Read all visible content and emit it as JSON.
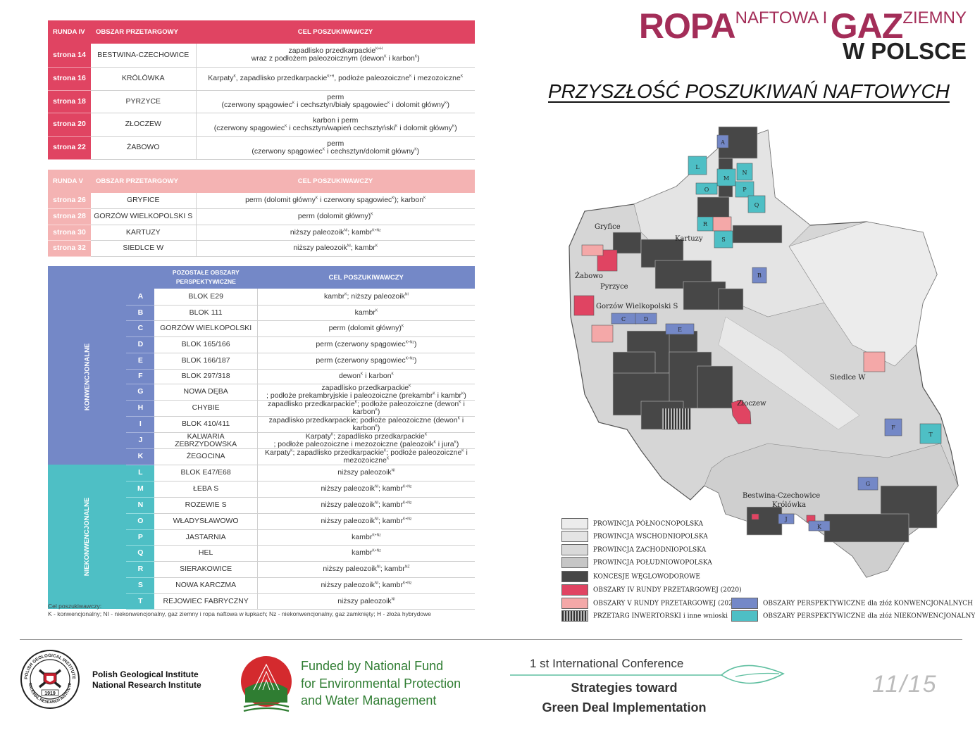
{
  "title": {
    "ropa": "ROPA",
    "naftowa": "NAFTOWA I",
    "gaz": "GAZ",
    "ziemny": "ZIEMNY",
    "w_polsce": "W POLSCE"
  },
  "subtitle": "PRZYSZŁOŚĆ POSZUKIWAŃ NAFTOWYCH",
  "colors": {
    "runda_iv": "#e04462",
    "runda_v": "#f4b3b3",
    "konwencjonalne": "#7488c7",
    "niekonwencjonalne": "#4ebfc5",
    "koncesje": "#474747",
    "title": "#a32d58"
  },
  "runda4": {
    "h1": "RUNDA IV",
    "h2": "OBSZAR PRZETARGOWY",
    "h3": "CEL POSZUKIWAWCZY",
    "rows": [
      {
        "page": "strona 14",
        "name": "BESTWINA-CZECHOWICE",
        "l1": "zapadlisko przedkarpackie",
        "s1": "K+H",
        "l2": "wraz z podłożem paleozoicznym (dewon",
        "s2": "K",
        "l3": " i karbon",
        "s3": "K",
        "l4": ")"
      },
      {
        "page": "strona 16",
        "name": "KRÓLÓWKA",
        "l1": "Karpaty",
        "s1": "K",
        "l2": ", zapadlisko przedkarpackie",
        "s2": "K+H",
        "l3": ", podłoże paleozoiczne",
        "s3": "K",
        "l4": " i mezozoiczne",
        "s4": "K"
      },
      {
        "page": "strona 18",
        "name": "PYRZYCE",
        "top": "perm",
        "l1": "(czerwony spągowiec",
        "s1": "K",
        "l2": " i cechsztyn/biały spągowiec",
        "s2": "K",
        "l3": " i dolomit główny",
        "s3": "K",
        "l4": ")"
      },
      {
        "page": "strona 20",
        "name": "ZŁOCZEW",
        "top": "karbon i perm",
        "l1": "(czerwony spągowiec",
        "s1": "K",
        "l2": " i cechsztyn/wapień cechsztyński",
        "s2": "K",
        "l3": " i dolomit główny",
        "s3": "K",
        "l4": ")"
      },
      {
        "page": "strona 22",
        "name": "ŻABOWO",
        "top": "perm",
        "l1": "(czerwony spągowiec",
        "s1": "K",
        "l2": " i cechsztyn/dolomit główny",
        "s2": "K",
        "l3": ")"
      }
    ]
  },
  "runda5": {
    "h1": "RUNDA V",
    "h2": "OBSZAR PRZETARGOWY",
    "h3": "CEL POSZUKIWAWCZY",
    "rows": [
      {
        "page": "strona 26",
        "name": "GRYFICE",
        "l1": "perm (dolomit główny",
        "s1": "K",
        "l2": " i czerwony spągowiec",
        "s2": "K",
        "l3": "); karbon",
        "s3": "K"
      },
      {
        "page": "strona 28",
        "name": "GORZÓW WIELKOPOLSKI S",
        "l1": "perm (dolomit główny)",
        "s1": "K"
      },
      {
        "page": "strona 30",
        "name": "KARTUZY",
        "l1": "niższy paleozoik",
        "s1": "NI",
        "l2": "; kambr",
        "s2": "K+Nz"
      },
      {
        "page": "strona 32",
        "name": "SIEDLCE W",
        "l1": "niższy paleozoik",
        "s1": "NI",
        "l2": "; kambr",
        "s2": "K"
      }
    ]
  },
  "others": {
    "h2": "POZOSTAŁE OBSZARY PERSPEKTYWICZNE",
    "h3": "CEL POSZUKIWAWCZY",
    "group_konw": "KONWENCJONALNE",
    "group_niekonw": "NIEKONWENCJONALNE",
    "rows": [
      {
        "letter": "A",
        "name": "BLOK E29",
        "l1": "kambr",
        "s1": "K",
        "l2": "; niższy paleozoik",
        "s2": "NI"
      },
      {
        "letter": "B",
        "name": "BLOK 111",
        "l1": "kambr",
        "s1": "K"
      },
      {
        "letter": "C",
        "name": "GORZÓW WIELKOPOLSKI",
        "l1": "perm (dolomit główny)",
        "s1": "K"
      },
      {
        "letter": "D",
        "name": "BLOK 165/166",
        "l1": "perm (czerwony spągowiec",
        "s1": "K+Nz",
        "l2": ")"
      },
      {
        "letter": "E",
        "name": "BLOK 166/187",
        "l1": "perm (czerwony spągowiec",
        "s1": "K+Nz",
        "l2": ")"
      },
      {
        "letter": "F",
        "name": "BLOK 297/318",
        "l1": "dewon",
        "s1": "K",
        "l2": " i karbon",
        "s2": "K"
      },
      {
        "letter": "G",
        "name": "NOWA DĘBA",
        "top": "zapadlisko przedkarpackie",
        "tops": "K",
        "l1": "; podłoże prekambryjskie i paleozoiczne (prekambr",
        "s1": "K",
        "l2": " i kambr",
        "s2": "K",
        "l3": ")"
      },
      {
        "letter": "H",
        "name": "CHYBIE",
        "l1": "zapadlisko przedkarpackie",
        "s1": "K",
        "l2": "; podłoże paleozoiczne (dewon",
        "s2": "K",
        "l3": " i karbon",
        "s3": "K",
        "l4": ")"
      },
      {
        "letter": "I",
        "name": "BLOK 410/411",
        "l1": "zapadlisko przedkarpackie; podłoże paleozoiczne  (dewon",
        "s1": "K",
        "l2": " i karbon",
        "s2": "K",
        "l3": ")"
      },
      {
        "letter": "J",
        "name": "KALWARIA ZEBRZYDOWSKA",
        "top": "Karpaty",
        "tops": "K",
        "top2": "; zapadlisko przedkarpackie",
        "tops2": "K",
        "l1": "; podłoże paleozoiczne i mezozoiczne (paleozoik",
        "s1": "K",
        "l2": " i jura",
        "s2": "K",
        "l3": ")"
      },
      {
        "letter": "K",
        "name": "ŻEGOCINA",
        "l1": "Karpaty",
        "s1": "K",
        "l2": "; zapadlisko przedkarpackie",
        "s2": "K",
        "l3": "; podłoże paleozoiczne",
        "s3": "K",
        "l4": " i mezozoiczne",
        "s4": "K"
      },
      {
        "letter": "L",
        "name": "BLOK E47/E68",
        "l1": "niższy paleozoik",
        "s1": "NI"
      },
      {
        "letter": "M",
        "name": "ŁEBA S",
        "l1": "niższy paleozoik",
        "s1": "NI",
        "l2": "; kambr",
        "s2": "K+Nz"
      },
      {
        "letter": "N",
        "name": "ROZEWIE S",
        "l1": "niższy paleozoik",
        "s1": "NI",
        "l2": "; kambr",
        "s2": "K+Nz"
      },
      {
        "letter": "O",
        "name": "WŁADYSŁAWOWO",
        "l1": "niższy paleozoik",
        "s1": "NI",
        "l2": "; kambr",
        "s2": "K+Nz"
      },
      {
        "letter": "P",
        "name": "JASTARNIA",
        "l1": "kambr",
        "s1": "K+Nz"
      },
      {
        "letter": "Q",
        "name": "HEL",
        "l1": "kambr",
        "s1": "K+Nz"
      },
      {
        "letter": "R",
        "name": "SIERAKOWICE",
        "l1": "niższy paleozoik",
        "s1": "NI",
        "l2": "; kambr",
        "s2": "NZ"
      },
      {
        "letter": "S",
        "name": "NOWA KARCZMA",
        "l1": "niższy paleozoik",
        "s1": "NI",
        "l2": "; kambr",
        "s2": "K+Nz"
      },
      {
        "letter": "T",
        "name": "REJOWIEC FABRYCZNY",
        "l1": "niższy paleozoik",
        "s1": "NI"
      }
    ]
  },
  "footnote": {
    "line1": "Cel poszukiwawczy:",
    "line2": "K - konwencjonalny; NI - niekonwencjonalny, gaz ziemny i ropa naftowa w łupkach; Nz - niekonwencjonalny, gaz zamknięty; H - złoża hybrydowe"
  },
  "map_labels": {
    "gryfice": "Gryfice",
    "zabowo": "Żabowo",
    "pyrzyce": "Pyrzyce",
    "gorzow": "Gorzów Wielkopolski S",
    "kartuzy": "Kartuzy",
    "zloczew": "Złoczew",
    "siedlce": "Siedlce W",
    "bestwina": "Bestwina-Czechowice",
    "krolowka": "Królówka",
    "letters": [
      "A",
      "L",
      "M",
      "N",
      "O",
      "P",
      "Q",
      "R",
      "S",
      "B",
      "C",
      "D",
      "E",
      "F",
      "T",
      "G",
      "J",
      "K"
    ]
  },
  "legend": {
    "items": [
      "PROWINCJA PÓŁNOCNOPOLSKA",
      "PROWINCJA WSCHODNIOPOLSKA",
      "PROWINCJA ZACHODNIOPOLSKA",
      "PROWINCJA POŁUDNIOWOPOLSKA",
      "KONCESJE WĘGLOWODOROWE",
      "OBSZARY IV RUNDY PRZETARGOWEJ (2020)",
      "OBSZARY V RUNDY PRZETARGOWEJ (2021)",
      "PRZETARG INWERTORSKI i inne wnioski"
    ],
    "konw": "OBSZARY PERSPEKTYWICZNE dla złóż KONWENCJONALNYCH [A-K]",
    "niekonw": "OBSZARY PERSPEKTYWICZNE dla złóż NIEKONWENCJONALNYCH [L-T]"
  },
  "footer": {
    "pgi_line1": "Polish Geological Institute",
    "pgi_line2": "National Research Institute",
    "pgi_seal_top": "POLISH GEOLOGICAL INSTITUTE",
    "pgi_seal_bottom": "NATIONAL RESEARCH INSTITUTE",
    "pgi_year": "1919",
    "fund_line1": "Funded by National Fund",
    "fund_line2": "for Environmental Protection",
    "fund_line3": "and Water Management",
    "conf_line1": "1 st International Conference",
    "conf_line2": "Strategies toward",
    "conf_line3": "Green Deal Implementation",
    "page": "11/15"
  }
}
